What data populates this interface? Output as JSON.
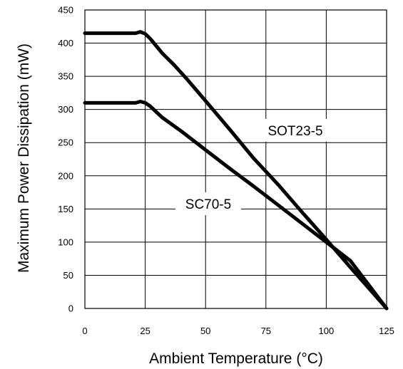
{
  "chart_data": {
    "type": "line",
    "title": "",
    "xlabel": "Ambient Temperature (°C)",
    "ylabel": "Maximum Power Dissipation (mW)",
    "xlim": [
      0,
      125
    ],
    "ylim": [
      0,
      450
    ],
    "x_ticks": [
      0,
      25,
      50,
      75,
      100,
      125
    ],
    "y_ticks": [
      0,
      50,
      100,
      150,
      200,
      250,
      300,
      350,
      400,
      450
    ],
    "x_tick_labels": [
      "0",
      "25",
      "50",
      "75",
      "100",
      "125"
    ],
    "y_tick_labels": [
      "0",
      "50",
      "100",
      "150",
      "200",
      "250",
      "300",
      "350",
      "400",
      "450"
    ],
    "grid": true,
    "legend": "none",
    "series": [
      {
        "name": "SOT23-5",
        "points": [
          [
            0,
            415
          ],
          [
            21,
            415
          ],
          [
            23,
            417
          ],
          [
            25,
            414
          ],
          [
            27,
            407
          ],
          [
            32,
            385
          ],
          [
            37,
            367
          ],
          [
            42,
            347
          ],
          [
            50,
            313
          ],
          [
            60,
            270
          ],
          [
            70,
            226
          ],
          [
            80,
            187
          ],
          [
            90,
            145
          ],
          [
            100,
            104
          ],
          [
            110,
            62
          ],
          [
            125,
            0
          ]
        ]
      },
      {
        "name": "SC70-5",
        "points": [
          [
            0,
            310
          ],
          [
            21,
            310
          ],
          [
            23,
            312
          ],
          [
            25,
            310
          ],
          [
            27,
            305
          ],
          [
            32,
            288
          ],
          [
            40,
            267
          ],
          [
            50,
            239
          ],
          [
            60,
            211
          ],
          [
            70,
            184
          ],
          [
            80,
            156
          ],
          [
            90,
            128
          ],
          [
            100,
            100
          ],
          [
            110,
            72
          ],
          [
            125,
            0
          ]
        ]
      }
    ]
  }
}
